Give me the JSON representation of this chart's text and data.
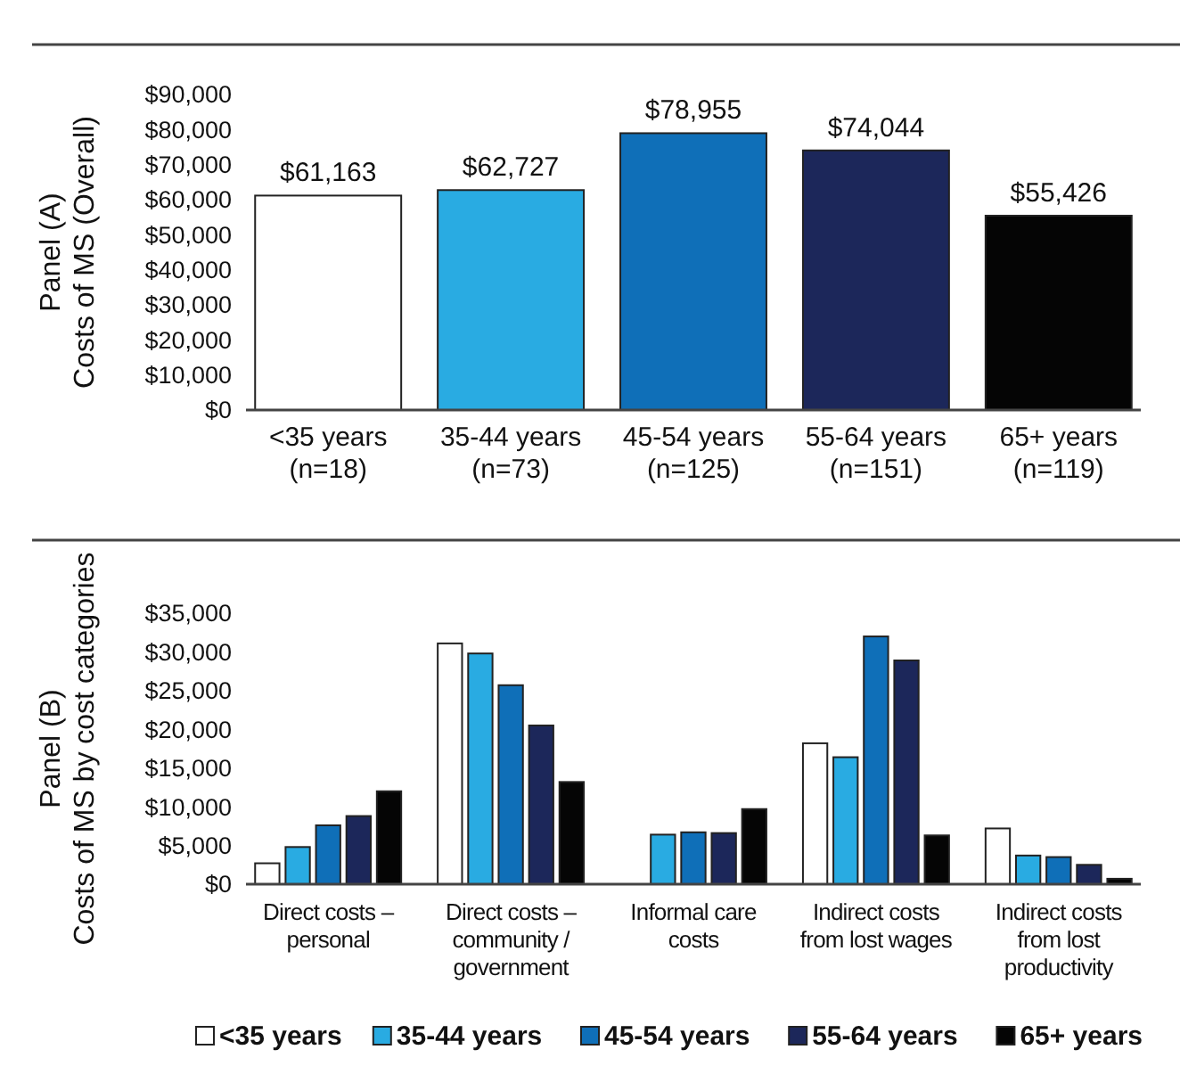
{
  "chart_data": [
    {
      "type": "bar",
      "ylabel": "Panel (A)\nCosts of MS (Overall)",
      "categories": [
        "<35 years\n(n=18)",
        "35-44 years\n(n=73)",
        "45-54 years\n(n=125)",
        "55-64 years\n(n=151)",
        "65+ years\n(n=119)"
      ],
      "values": [
        61163,
        62727,
        78955,
        74044,
        55426
      ],
      "colors": [
        "#ffffff",
        "#29abe2",
        "#0f6fb8",
        "#1c275a",
        "#050505"
      ],
      "data_labels": true,
      "value_labels": [
        "$61,163",
        "$62,727",
        "$78,955",
        "$74,044",
        "$55,426"
      ],
      "ylim": [
        0,
        90000
      ],
      "yticks": [
        {
          "value": 0,
          "label": "$0"
        },
        {
          "value": 10000,
          "label": "$10,000"
        },
        {
          "value": 20000,
          "label": "$20,000"
        },
        {
          "value": 30000,
          "label": "$30,000"
        },
        {
          "value": 40000,
          "label": "$40,000"
        },
        {
          "value": 50000,
          "label": "$50,000"
        },
        {
          "value": 60000,
          "label": "$60,000"
        },
        {
          "value": 70000,
          "label": "$70,000"
        },
        {
          "value": 80000,
          "label": "$80,000"
        },
        {
          "value": 90000,
          "label": "$90,000"
        }
      ],
      "grid": false,
      "legend": false
    },
    {
      "type": "bar",
      "ylabel": "Panel (B)\nCosts of MS by cost categories",
      "categories": [
        "Direct costs –\npersonal",
        "Direct costs –\ncommunity /\ngovernment",
        "Informal care\ncosts",
        "Indirect costs\nfrom lost wages",
        "Indirect costs\nfrom lost\nproductivity"
      ],
      "series": [
        {
          "name": "<35 years",
          "color": "#ffffff",
          "values": [
            2700,
            31100,
            null,
            18200,
            7200
          ]
        },
        {
          "name": "35-44 years",
          "color": "#29abe2",
          "values": [
            4800,
            29800,
            6400,
            16400,
            3700
          ]
        },
        {
          "name": "45-54 years",
          "color": "#0f6fb8",
          "values": [
            7600,
            25700,
            6700,
            32000,
            3500
          ]
        },
        {
          "name": "55-64 years",
          "color": "#1c275a",
          "values": [
            8800,
            20500,
            6600,
            28900,
            2500
          ]
        },
        {
          "name": "65+ years",
          "color": "#050505",
          "values": [
            12000,
            13200,
            9700,
            6300,
            700
          ]
        }
      ],
      "ylim": [
        0,
        35000
      ],
      "yticks": [
        {
          "value": 0,
          "label": "$0"
        },
        {
          "value": 5000,
          "label": "$5,000"
        },
        {
          "value": 10000,
          "label": "$10,000"
        },
        {
          "value": 15000,
          "label": "$15,000"
        },
        {
          "value": 20000,
          "label": "$20,000"
        },
        {
          "value": 25000,
          "label": "$25,000"
        },
        {
          "value": 30000,
          "label": "$30,000"
        },
        {
          "value": 35000,
          "label": "$35,000"
        }
      ],
      "grid": false,
      "legend": "bottom"
    }
  ]
}
